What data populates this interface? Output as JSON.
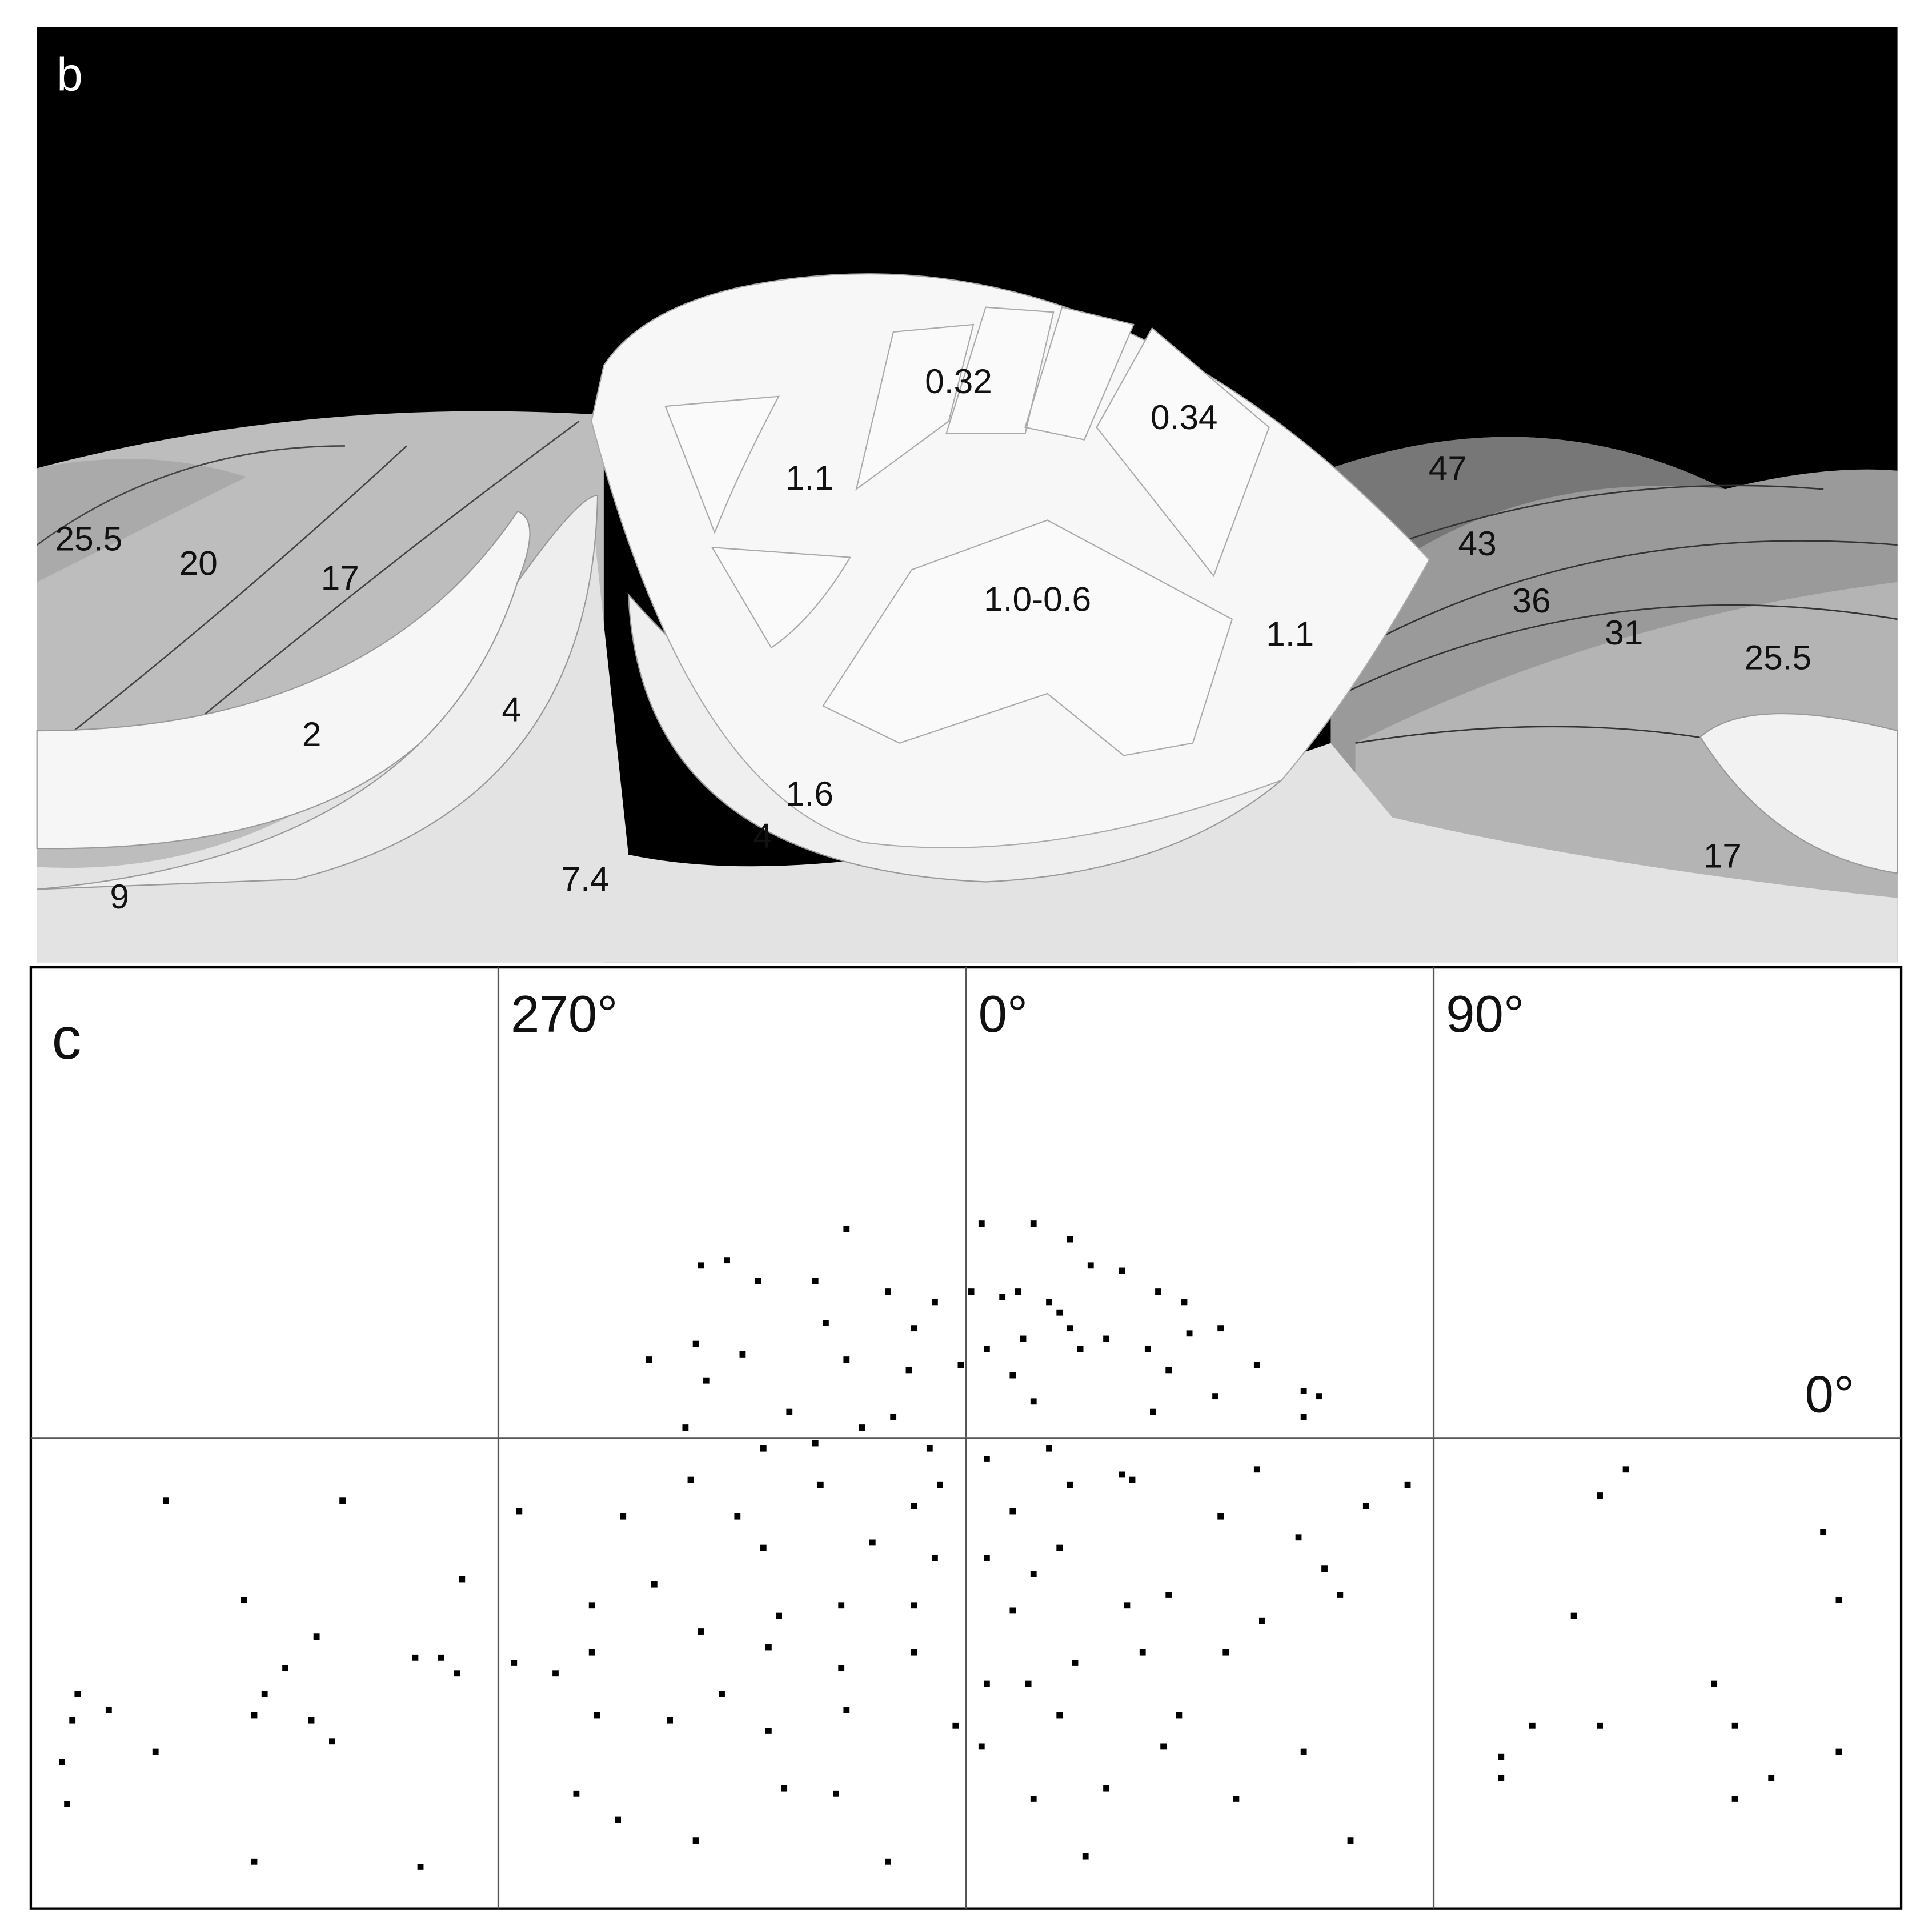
{
  "panel_b": {
    "label": "b",
    "region_labels": [
      "25.5",
      "20",
      "17",
      "2",
      "4",
      "9",
      "7.4",
      "1.6",
      "4",
      "1.1",
      "0.32",
      "0.34",
      "1.0-0.6",
      "1.1",
      "47",
      "43",
      "36",
      "31",
      "25.5",
      "17"
    ]
  },
  "chart_data": {
    "type": "scatter",
    "panel_label": "c",
    "color": "#000000",
    "grid": true,
    "xlim": [
      180,
      540
    ],
    "ylim": [
      -90,
      90
    ],
    "xticks": [
      {
        "value": 270,
        "label": "270°"
      },
      {
        "value": 360,
        "label": "0°"
      },
      {
        "value": 450,
        "label": "90°"
      }
    ],
    "yticks": [
      {
        "value": 0,
        "label": "0°"
      }
    ],
    "x": [
      206,
      240,
      263,
      221,
      235,
      254,
      259,
      262,
      229,
      225,
      189,
      188,
      195,
      223,
      234,
      238,
      204,
      186,
      187,
      223,
      255,
      487,
      482,
      525,
      528,
      477,
      504,
      469,
      482,
      508,
      463,
      528,
      463,
      515,
      508,
      337,
      363,
      373,
      380,
      309,
      314,
      320,
      331,
      345,
      354,
      361,
      370,
      376,
      384,
      390,
      397,
      402,
      333,
      350,
      364,
      371,
      380,
      395,
      403,
      409,
      299,
      308,
      317,
      337,
      349,
      369,
      382,
      399,
      408,
      416,
      425,
      428,
      310,
      326,
      346,
      373,
      396,
      425,
      306,
      321,
      331,
      353,
      376,
      390,
      416,
      445,
      274,
      294,
      307,
      316,
      332,
      350,
      369,
      392,
      409,
      424,
      437,
      300,
      321,
      342,
      364,
      378,
      399,
      429,
      432,
      288,
      309,
      324,
      336,
      350,
      369,
      391,
      417,
      273,
      281,
      288,
      322,
      336,
      350,
      364,
      372,
      381,
      394,
      410,
      313,
      289,
      303,
      322,
      337,
      358,
      378,
      401,
      398,
      425,
      363,
      285,
      293,
      325,
      335,
      373,
      387,
      412,
      308,
      345,
      383,
      434,
      367,
      378,
      387,
      359,
      340,
      364,
      355,
      380,
      373,
      354
    ],
    "y": [
      -12,
      -12,
      -27,
      -31,
      -38,
      -42,
      -42,
      -45,
      -44,
      -49,
      -49,
      -54,
      -52,
      -53,
      -54,
      -58,
      -60,
      -62,
      -70,
      -81,
      -82,
      -6,
      -11,
      -18,
      -31,
      -34,
      -47,
      -55,
      -55,
      -55,
      -61,
      -60,
      -65,
      -65,
      -69,
      40,
      41,
      41,
      38,
      33,
      34,
      30,
      30,
      28,
      26,
      28,
      28,
      26,
      33,
      32,
      28,
      26,
      22,
      21,
      17,
      19,
      21,
      17,
      20,
      21,
      15,
      18,
      16,
      15,
      13,
      12,
      17,
      13,
      8,
      14,
      9,
      8,
      11,
      5,
      4,
      7,
      5,
      4,
      2,
      -2,
      -1,
      -2,
      -2,
      -7,
      -6,
      -9,
      -14,
      -15,
      -8,
      -15,
      -9,
      -13,
      -14,
      -8,
      -15,
      -19,
      -13,
      -28,
      -21,
      -20,
      -23,
      -21,
      -30,
      -25,
      -30,
      -32,
      -37,
      -34,
      -32,
      -32,
      -33,
      -32,
      -35,
      -43,
      -45,
      -41,
      -40,
      -44,
      -41,
      -47,
      -47,
      -43,
      -41,
      -41,
      -49,
      -53,
      -54,
      -56,
      -52,
      -55,
      -53,
      -53,
      -59,
      -60,
      -59,
      -68,
      -73,
      -67,
      -68,
      -69,
      -67,
      -69,
      -77,
      -81,
      -80,
      -77,
      27,
      24,
      19,
      14,
      2,
      -4,
      -9,
      -9,
      -26,
      -23
    ]
  }
}
